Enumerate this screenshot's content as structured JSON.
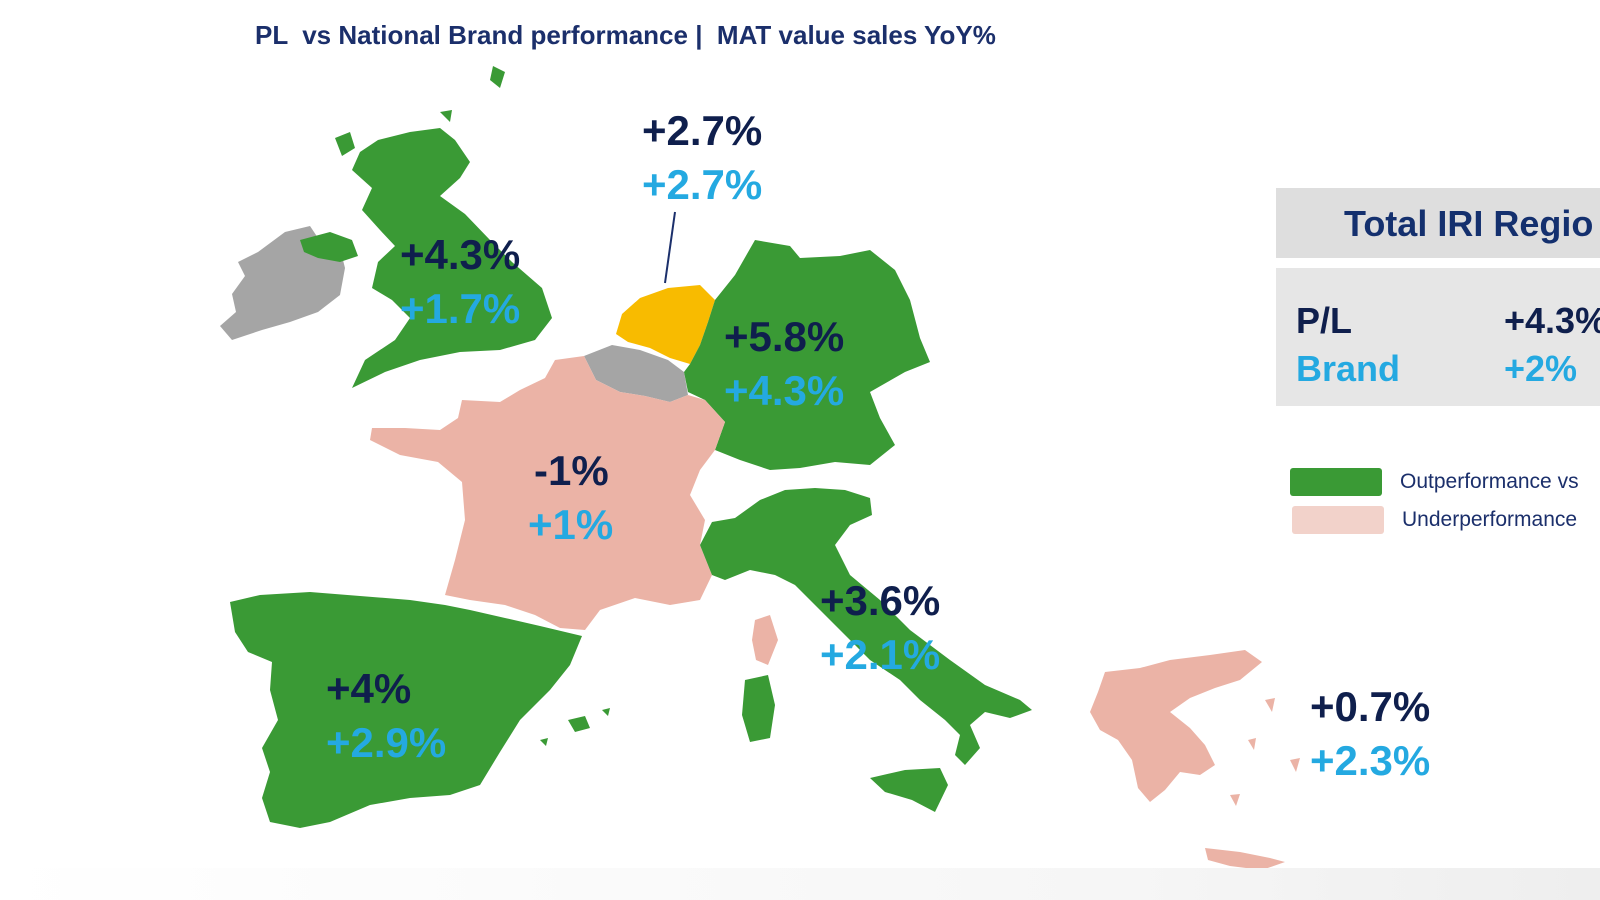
{
  "title": "PL  vs National Brand performance |  MAT value sales YoY%",
  "colors": {
    "outperformance": "#3a9a35",
    "underperformance": "#ebb3a6",
    "highlight": "#f8bb00",
    "no_data": "#a5a5a5",
    "pl_text": "#0f1f4d",
    "brand_text": "#24a9e1"
  },
  "countries": {
    "netherlands": {
      "pl": "+2.7%",
      "brand": "+2.7%"
    },
    "uk": {
      "pl": "+4.3%",
      "brand": "+1.7%"
    },
    "germany": {
      "pl": "+5.8%",
      "brand": "+4.3%"
    },
    "france": {
      "pl": "-1%",
      "brand": "+1%"
    },
    "italy": {
      "pl": "+3.6%",
      "brand": "+2.1%"
    },
    "spain": {
      "pl": "+4%",
      "brand": "+2.9%"
    },
    "greece": {
      "pl": "+0.7%",
      "brand": "+2.3%"
    }
  },
  "total_panel": {
    "title": "Total IRI Regio",
    "pl_label": "P/L",
    "pl_value": "+4.3%",
    "brand_label": "Brand",
    "brand_value": "+2%"
  },
  "legend": {
    "outperformance": "Outperformance vs",
    "underperformance": "Underperformance"
  }
}
